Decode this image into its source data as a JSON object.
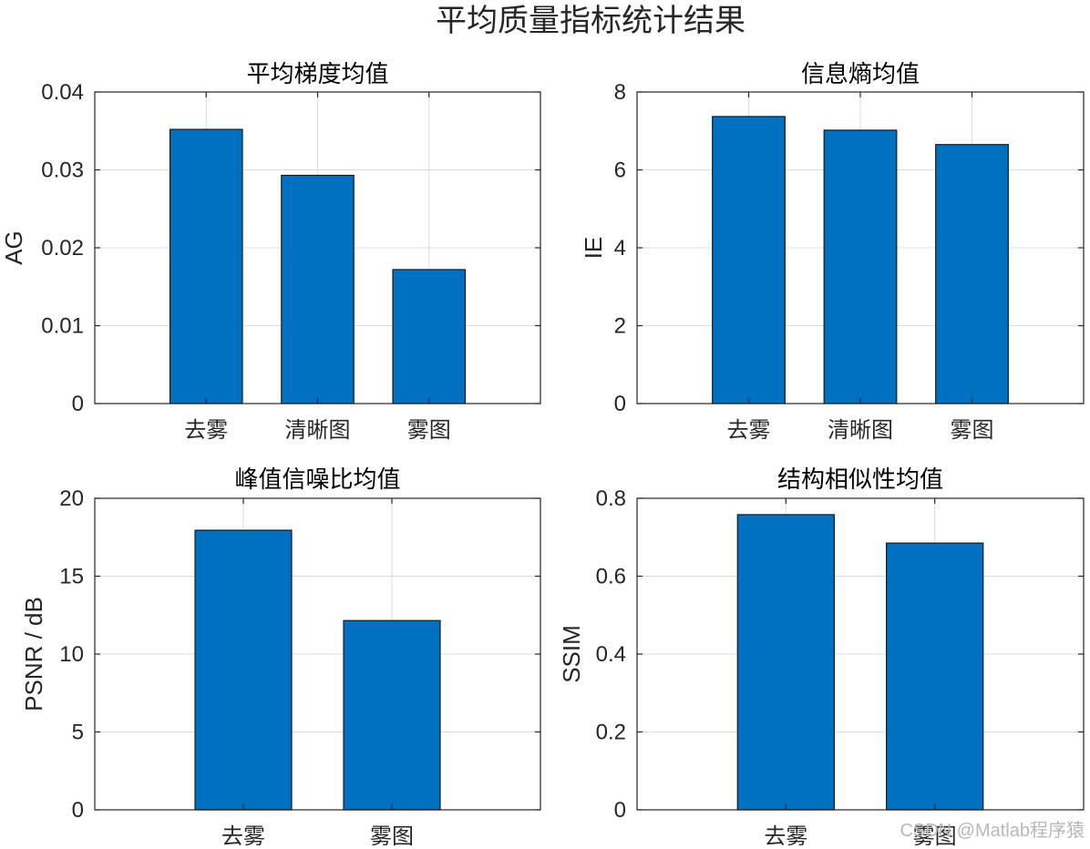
{
  "figure": {
    "title": "平均质量指标统计结果",
    "watermark": "CSDN @Matlab程序猿",
    "bar_color": "#0070C0"
  },
  "chart_data": [
    {
      "type": "bar",
      "title": "平均梯度均值",
      "ylabel": "AG",
      "categories": [
        "去雾",
        "清晰图",
        "雾图"
      ],
      "values": [
        0.0352,
        0.0293,
        0.0172
      ],
      "ylim": [
        0,
        0.04
      ],
      "yticks": [
        0,
        0.01,
        0.02,
        0.03,
        0.04
      ],
      "ytick_labels": [
        "0",
        "0.01",
        "0.02",
        "0.03",
        "0.04"
      ],
      "grid": true
    },
    {
      "type": "bar",
      "title": "信息熵均值",
      "ylabel": "IE",
      "categories": [
        "去雾",
        "清晰图",
        "雾图"
      ],
      "values": [
        7.37,
        7.02,
        6.65
      ],
      "ylim": [
        0,
        8
      ],
      "yticks": [
        0,
        2,
        4,
        6,
        8
      ],
      "ytick_labels": [
        "0",
        "2",
        "4",
        "6",
        "8"
      ],
      "grid": true
    },
    {
      "type": "bar",
      "title": "峰值信噪比均值",
      "ylabel": "PSNR / dB",
      "categories": [
        "去雾",
        "雾图"
      ],
      "values": [
        17.95,
        12.15
      ],
      "ylim": [
        0,
        20
      ],
      "yticks": [
        0,
        5,
        10,
        15,
        20
      ],
      "ytick_labels": [
        "0",
        "5",
        "10",
        "15",
        "20"
      ],
      "grid": true
    },
    {
      "type": "bar",
      "title": "结构相似性均值",
      "ylabel": "SSIM",
      "categories": [
        "去雾",
        "雾图"
      ],
      "values": [
        0.758,
        0.685
      ],
      "ylim": [
        0,
        0.8
      ],
      "yticks": [
        0,
        0.2,
        0.4,
        0.6,
        0.8
      ],
      "ytick_labels": [
        "0",
        "0.2",
        "0.4",
        "0.6",
        "0.8"
      ],
      "grid": true
    }
  ]
}
